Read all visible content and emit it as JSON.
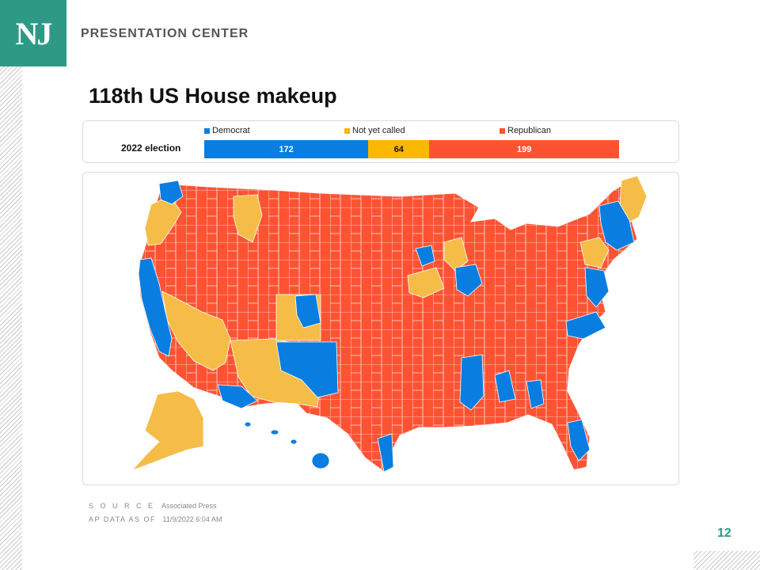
{
  "header": {
    "logo_text": "NJ",
    "title": "PRESENTATION CENTER",
    "brand_color": "#2e9a86"
  },
  "slide": {
    "title": "118th US House makeup",
    "page_number": "12"
  },
  "chart_data": {
    "type": "bar",
    "orientation": "horizontal-stacked",
    "categories": [
      "2022 election"
    ],
    "series": [
      {
        "name": "Democrat",
        "values": [
          172
        ],
        "color": "#0a7ee0",
        "text_color": "#ffffff"
      },
      {
        "name": "Not yet called",
        "values": [
          64
        ],
        "color": "#fbb800",
        "text_color": "#111111"
      },
      {
        "name": "Republican",
        "values": [
          199
        ],
        "color": "#fe5333",
        "text_color": "#ffffff"
      }
    ],
    "legend_position": "top"
  },
  "map": {
    "description_type": "US congressional districts choropleth",
    "colors": {
      "democrat": "#0a7ee0",
      "not_yet_called": "#f5bd47",
      "republican": "#fe5333",
      "borders": "#ffffff"
    }
  },
  "footer": {
    "source_label": "S O U R C E",
    "source_value": "Associated Press",
    "date_label": "AP DATA AS OF",
    "date_value": "11/9/2022 6:04 AM"
  }
}
